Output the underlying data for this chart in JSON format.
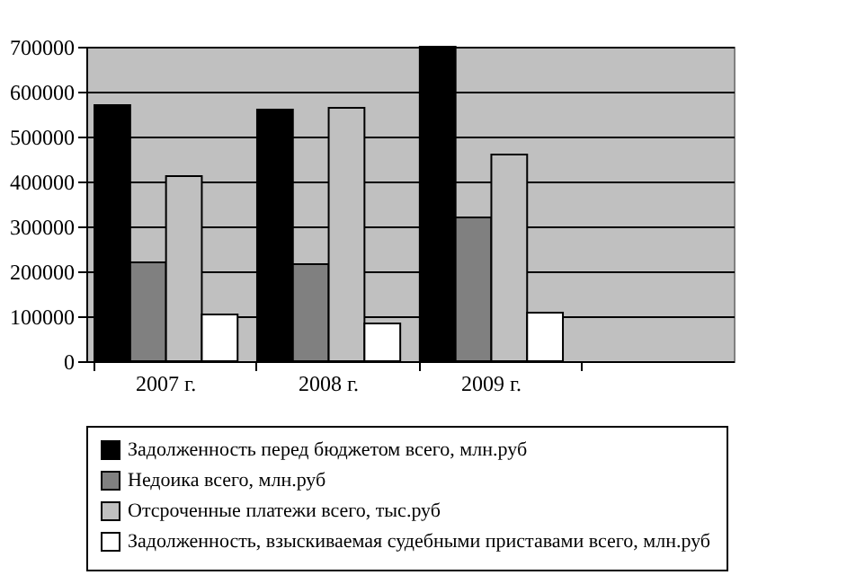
{
  "chart_data": {
    "type": "bar",
    "categories": [
      "2007 г.",
      "2008 г.",
      "2009 г.",
      null
    ],
    "series": [
      {
        "name": "Задолженность перед бюджетом всего, млн.руб",
        "color": "#000000",
        "values": [
          570000,
          560000,
          700000,
          null
        ]
      },
      {
        "name": "Недоика всего, млн.руб",
        "color": "#808080",
        "values": [
          220000,
          216000,
          320000,
          null
        ]
      },
      {
        "name": "Отсроченные платежи всего, тыс.руб",
        "color": "#c0c0c0",
        "values": [
          412000,
          564000,
          460000,
          null
        ]
      },
      {
        "name": "Задолженность, взыскиваемая судебными приставами всего, млн.руб",
        "color": "#ffffff",
        "values": [
          104000,
          84000,
          108000,
          null
        ]
      }
    ],
    "ylim": [
      0,
      700000
    ],
    "yticks": [
      0,
      100000,
      200000,
      300000,
      400000,
      500000,
      600000,
      700000
    ],
    "grid": "y",
    "legend": "bottom"
  }
}
